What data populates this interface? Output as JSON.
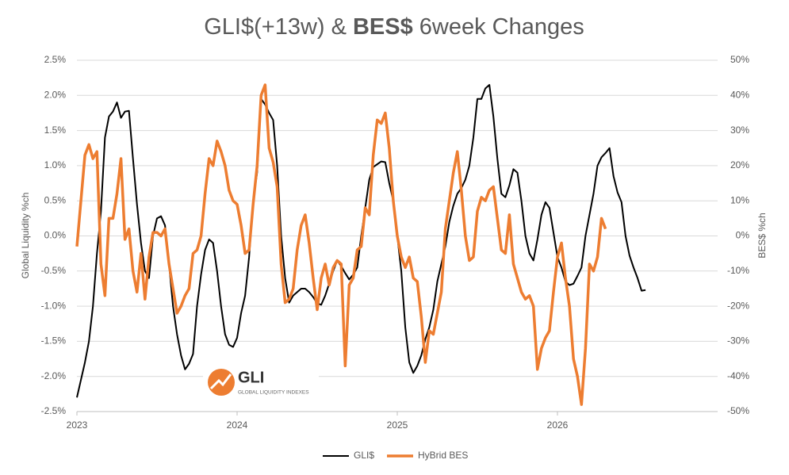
{
  "chart_data": {
    "type": "line",
    "title": [
      "GLI$(+13w) &",
      "BES$",
      "6week Changes"
    ],
    "ylabel": "Global Liquidity %ch",
    "y2label": "BES$ %ch",
    "x": [
      2023,
      2023.025,
      2023.05,
      2023.075,
      2023.1,
      2023.125,
      2023.15,
      2023.175,
      2023.2,
      2023.225,
      2023.25,
      2023.275,
      2023.3,
      2023.325,
      2023.35,
      2023.375,
      2023.4,
      2023.425,
      2023.45,
      2023.475,
      2023.5,
      2023.525,
      2023.55,
      2023.575,
      2023.6,
      2023.625,
      2023.65,
      2023.675,
      2023.7,
      2023.725,
      2023.75,
      2023.775,
      2023.8,
      2023.825,
      2023.85,
      2023.875,
      2023.9,
      2023.925,
      2023.95,
      2023.975,
      2024,
      2024.025,
      2024.05,
      2024.075,
      2024.1,
      2024.125,
      2024.15,
      2024.175,
      2024.2,
      2024.225,
      2024.25,
      2024.275,
      2024.3,
      2024.325,
      2024.35,
      2024.375,
      2024.4,
      2024.425,
      2024.45,
      2024.475,
      2024.5,
      2024.525,
      2024.55,
      2024.575,
      2024.6,
      2024.625,
      2024.65,
      2024.675,
      2024.7,
      2024.725,
      2024.75,
      2024.775,
      2024.8,
      2024.825,
      2024.85,
      2024.875,
      2024.9,
      2024.925,
      2024.95,
      2024.975,
      2025,
      2025.025,
      2025.05,
      2025.075,
      2025.1,
      2025.125,
      2025.15,
      2025.175,
      2025.2,
      2025.225,
      2025.25,
      2025.275,
      2025.3,
      2025.325,
      2025.35,
      2025.375,
      2025.4,
      2025.425,
      2025.45,
      2025.475,
      2025.5,
      2025.525,
      2025.55,
      2025.575,
      2025.6,
      2025.625,
      2025.65,
      2025.675,
      2025.7,
      2025.725,
      2025.75,
      2025.775,
      2025.8,
      2025.825,
      2025.85,
      2025.875,
      2025.9,
      2025.925,
      2025.95,
      2025.975,
      2026,
      2026.025,
      2026.05,
      2026.075,
      2026.1,
      2026.125,
      2026.15,
      2026.175,
      2026.2,
      2026.225,
      2026.25,
      2026.275,
      2026.3,
      2026.325,
      2026.35,
      2026.375,
      2026.4,
      2026.425,
      2026.45,
      2026.475,
      2026.5,
      2026.525,
      2026.55
    ],
    "series": [
      {
        "name": "GLI$",
        "color": "#000000",
        "values": [
          -2.3,
          -2.05,
          -1.8,
          -1.5,
          -1.0,
          -0.25,
          0.35,
          1.4,
          1.7,
          1.77,
          1.9,
          1.68,
          1.77,
          1.78,
          1.1,
          0.45,
          -0.1,
          -0.5,
          -0.6,
          0.0,
          0.25,
          0.28,
          0.15,
          -0.4,
          -1.0,
          -1.4,
          -1.7,
          -1.9,
          -1.82,
          -1.68,
          -1.0,
          -0.55,
          -0.2,
          -0.05,
          -0.1,
          -0.5,
          -1.0,
          -1.4,
          -1.55,
          -1.58,
          -1.45,
          -1.1,
          -0.85,
          -0.3,
          0.5,
          0.9,
          1.95,
          1.87,
          1.75,
          1.65,
          1.0,
          0.0,
          -0.6,
          -0.95,
          -0.85,
          -0.8,
          -0.75,
          -0.75,
          -0.8,
          -0.87,
          -0.96,
          -0.98,
          -0.85,
          -0.68,
          -0.5,
          -0.35,
          -0.43,
          -0.53,
          -0.62,
          -0.55,
          -0.45,
          0.0,
          0.4,
          0.8,
          0.98,
          1.02,
          1.06,
          1.05,
          0.75,
          0.5,
          0.0,
          -0.5,
          -1.3,
          -1.8,
          -1.95,
          -1.85,
          -1.7,
          -1.47,
          -1.3,
          -1.05,
          -0.65,
          -0.4,
          -0.15,
          0.2,
          0.43,
          0.6,
          0.68,
          0.8,
          1.0,
          1.4,
          1.95,
          1.95,
          2.1,
          2.15,
          1.7,
          1.1,
          0.6,
          0.55,
          0.72,
          0.95,
          0.9,
          0.5,
          0.0,
          -0.25,
          -0.35,
          -0.05,
          0.3,
          0.48,
          0.4,
          0.05,
          -0.3,
          -0.45,
          -0.65,
          -0.7,
          -0.68,
          -0.57,
          -0.45,
          0.0,
          0.3,
          0.6,
          1.0,
          1.12,
          1.18,
          1.25,
          0.85,
          0.62,
          0.48,
          0.0,
          -0.28,
          -0.45,
          -0.6,
          -0.78,
          -0.77
        ]
      },
      {
        "name": "HyBrid BES",
        "color": "#ed7d31",
        "axis": "y2",
        "values": [
          -3,
          10,
          23,
          26,
          22,
          24,
          -8,
          -17,
          5,
          5,
          12,
          22,
          -1,
          2,
          -10,
          -16,
          -5,
          -18,
          -6,
          1,
          1,
          0,
          2,
          -8,
          -15,
          -22,
          -20,
          -17,
          -15,
          -5,
          -4,
          0,
          12,
          22,
          20,
          27,
          24,
          20,
          13,
          10,
          9,
          3,
          -5,
          -4,
          9,
          20,
          40,
          43,
          25,
          21,
          14,
          -8,
          -19,
          -18,
          -15,
          -4,
          3,
          6,
          -2,
          -12,
          -21,
          -12,
          -8,
          -14,
          -9,
          -7,
          -8,
          -37,
          -14,
          -12,
          -4,
          -3,
          8,
          6,
          23,
          33,
          32,
          35,
          25,
          10,
          0,
          -6,
          -9,
          -6,
          -12,
          -13,
          -23,
          -36,
          -27,
          -28,
          -22,
          -16,
          2,
          10,
          18,
          24,
          13,
          0,
          -7,
          -6,
          7,
          11,
          10,
          13,
          14,
          5,
          -4,
          -5,
          6,
          -8,
          -12,
          -16,
          -18,
          -17,
          -20,
          -38,
          -32,
          -29,
          -27,
          -16,
          -6,
          -2,
          -12,
          -20,
          -35,
          -40,
          -48,
          -32,
          -8,
          -10,
          -6,
          5,
          2,
          null,
          null,
          null,
          null,
          null,
          null,
          null,
          null,
          null,
          null
        ]
      }
    ],
    "xlim": [
      2023,
      2027
    ],
    "xticks": [
      2023,
      2024,
      2025,
      2026
    ],
    "ylim": [
      -2.5,
      2.5
    ],
    "yticks": [
      {
        "value": -2.5,
        "label": "-2.5%"
      },
      {
        "value": -2.0,
        "label": "-2.0%"
      },
      {
        "value": -1.5,
        "label": "-1.5%"
      },
      {
        "value": -1.0,
        "label": "-1.0%"
      },
      {
        "value": -0.5,
        "label": "-0.5%"
      },
      {
        "value": 0,
        "label": "0.0%"
      },
      {
        "value": 0.5,
        "label": "0.5%"
      },
      {
        "value": 1.0,
        "label": "1.0%"
      },
      {
        "value": 1.5,
        "label": "1.5%"
      },
      {
        "value": 2.0,
        "label": "2.0%"
      },
      {
        "value": 2.5,
        "label": "2.5%"
      }
    ],
    "y2lim": [
      -50,
      50
    ],
    "y2ticks": [
      {
        "value": -50,
        "label": "-50%"
      },
      {
        "value": -40,
        "label": "-40%"
      },
      {
        "value": -30,
        "label": "-30%"
      },
      {
        "value": -20,
        "label": "-20%"
      },
      {
        "value": -10,
        "label": "-10%"
      },
      {
        "value": 0,
        "label": "0%"
      },
      {
        "value": 10,
        "label": "10%"
      },
      {
        "value": 20,
        "label": "20%"
      },
      {
        "value": 30,
        "label": "30%"
      },
      {
        "value": 40,
        "label": "40%"
      },
      {
        "value": 50,
        "label": "50%"
      }
    ],
    "grid": true,
    "legend": "bottom"
  },
  "logo": {
    "text": "GLI",
    "subtitle": "GLOBAL LIQUIDITY INDEXES"
  }
}
